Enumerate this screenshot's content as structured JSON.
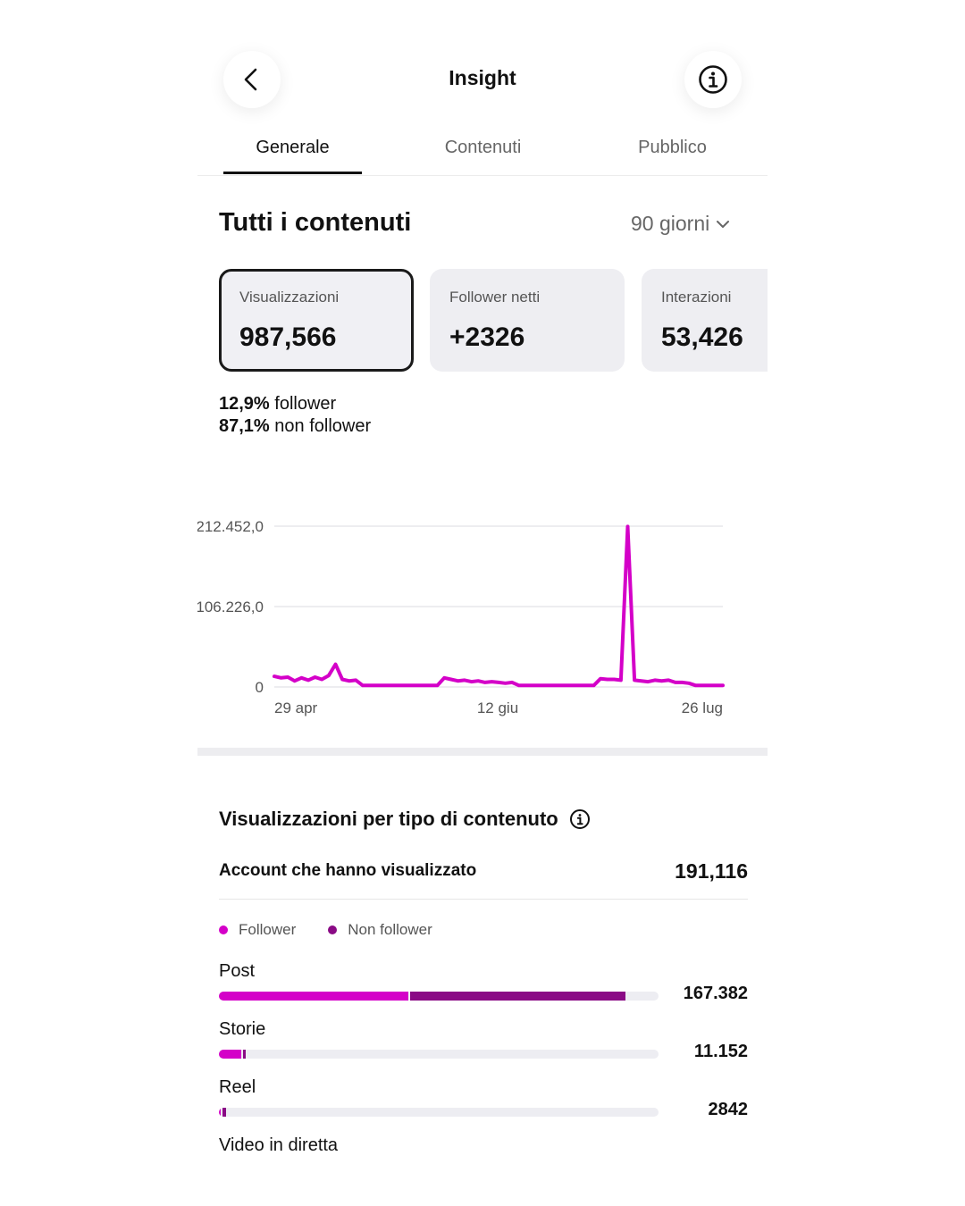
{
  "header": {
    "title": "Insight",
    "back_icon": "chevron-left-icon",
    "info_icon": "info-icon"
  },
  "tabs": [
    {
      "label": "Generale",
      "active": true
    },
    {
      "label": "Contenuti",
      "active": false
    },
    {
      "label": "Pubblico",
      "active": false
    }
  ],
  "overview": {
    "title": "Tutti i contenuti",
    "period": "90 giorni",
    "cards": [
      {
        "label": "Visualizzazioni",
        "value": "987,566",
        "selected": true
      },
      {
        "label": "Follower netti",
        "value": "+2326",
        "selected": false
      },
      {
        "label": "Interazioni",
        "value": "53,426",
        "selected": false
      }
    ],
    "follower_pct": "12,9%",
    "follower_text": "follower",
    "nonfollower_pct": "87,1%",
    "nonfollower_text": "non follower"
  },
  "chart_data": {
    "type": "line",
    "title": "",
    "xlabel": "",
    "ylabel": "",
    "x_tick_labels": [
      "29 apr",
      "12 giu",
      "26 lug"
    ],
    "y_tick_labels": [
      "212.452,0",
      "106.226,0",
      "0"
    ],
    "ylim": [
      0,
      212452
    ],
    "grid": true,
    "line_color": "#d400c8",
    "series": [
      {
        "values": [
          14000,
          12000,
          13000,
          8000,
          12000,
          9000,
          13000,
          10000,
          15000,
          30000,
          10000,
          8000,
          9000,
          2000,
          2000,
          2000,
          2000,
          2000,
          2000,
          2000,
          2000,
          2000,
          2000,
          2000,
          2000,
          12000,
          10000,
          8000,
          9000,
          7000,
          8000,
          6000,
          7000,
          6000,
          5000,
          6000,
          2000,
          2000,
          2000,
          2000,
          2000,
          2000,
          2000,
          2000,
          2000,
          2000,
          2000,
          2000,
          11000,
          10000,
          10000,
          9000,
          212000,
          9000,
          8000,
          7000,
          9000,
          8000,
          9000,
          6000,
          6000,
          5000,
          2000,
          2000,
          2000,
          2000,
          2000
        ]
      }
    ]
  },
  "by_type": {
    "title": "Visualizzazioni per tipo di contenuto",
    "accounts_label": "Account che hanno visualizzato",
    "accounts_value": "191,116",
    "legend": [
      {
        "label": "Follower",
        "color": "#d400c8"
      },
      {
        "label": "Non follower",
        "color": "#8a0a85"
      }
    ],
    "rows": [
      {
        "label": "Post",
        "value": "167.382",
        "follower_fraction": 0.43,
        "nonfollower_fraction": 0.49
      },
      {
        "label": "Storie",
        "value": "11.152",
        "follower_fraction": 0.05,
        "nonfollower_fraction": 0.007
      },
      {
        "label": "Reel",
        "value": "2842",
        "follower_fraction": 0.004,
        "nonfollower_fraction": 0.008
      },
      {
        "label": "Video in diretta",
        "value": "",
        "follower_fraction": 0,
        "nonfollower_fraction": 0
      }
    ]
  }
}
